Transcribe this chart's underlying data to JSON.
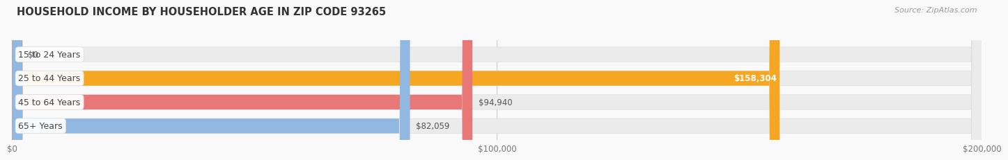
{
  "title": "HOUSEHOLD INCOME BY HOUSEHOLDER AGE IN ZIP CODE 93265",
  "source": "Source: ZipAtlas.com",
  "categories": [
    "15 to 24 Years",
    "25 to 44 Years",
    "45 to 64 Years",
    "65+ Years"
  ],
  "values": [
    0,
    158304,
    94940,
    82059
  ],
  "bar_colors": [
    "#f48fb1",
    "#f5a623",
    "#e87878",
    "#90b8e0"
  ],
  "bar_bg_color": "#ebebeb",
  "background_color": "#f9f9f9",
  "xlim": [
    0,
    200000
  ],
  "xticks": [
    0,
    100000,
    200000
  ],
  "xtick_labels": [
    "$0",
    "$100,000",
    "$200,000"
  ],
  "value_labels": [
    "$0",
    "$158,304",
    "$94,940",
    "$82,059"
  ],
  "value_label_inside": [
    false,
    true,
    false,
    false
  ],
  "title_fontsize": 10.5,
  "source_fontsize": 8,
  "bar_label_fontsize": 8.5,
  "tick_fontsize": 8.5,
  "category_fontsize": 9,
  "bar_height": 0.62,
  "fig_width": 14.06,
  "fig_height": 2.33
}
